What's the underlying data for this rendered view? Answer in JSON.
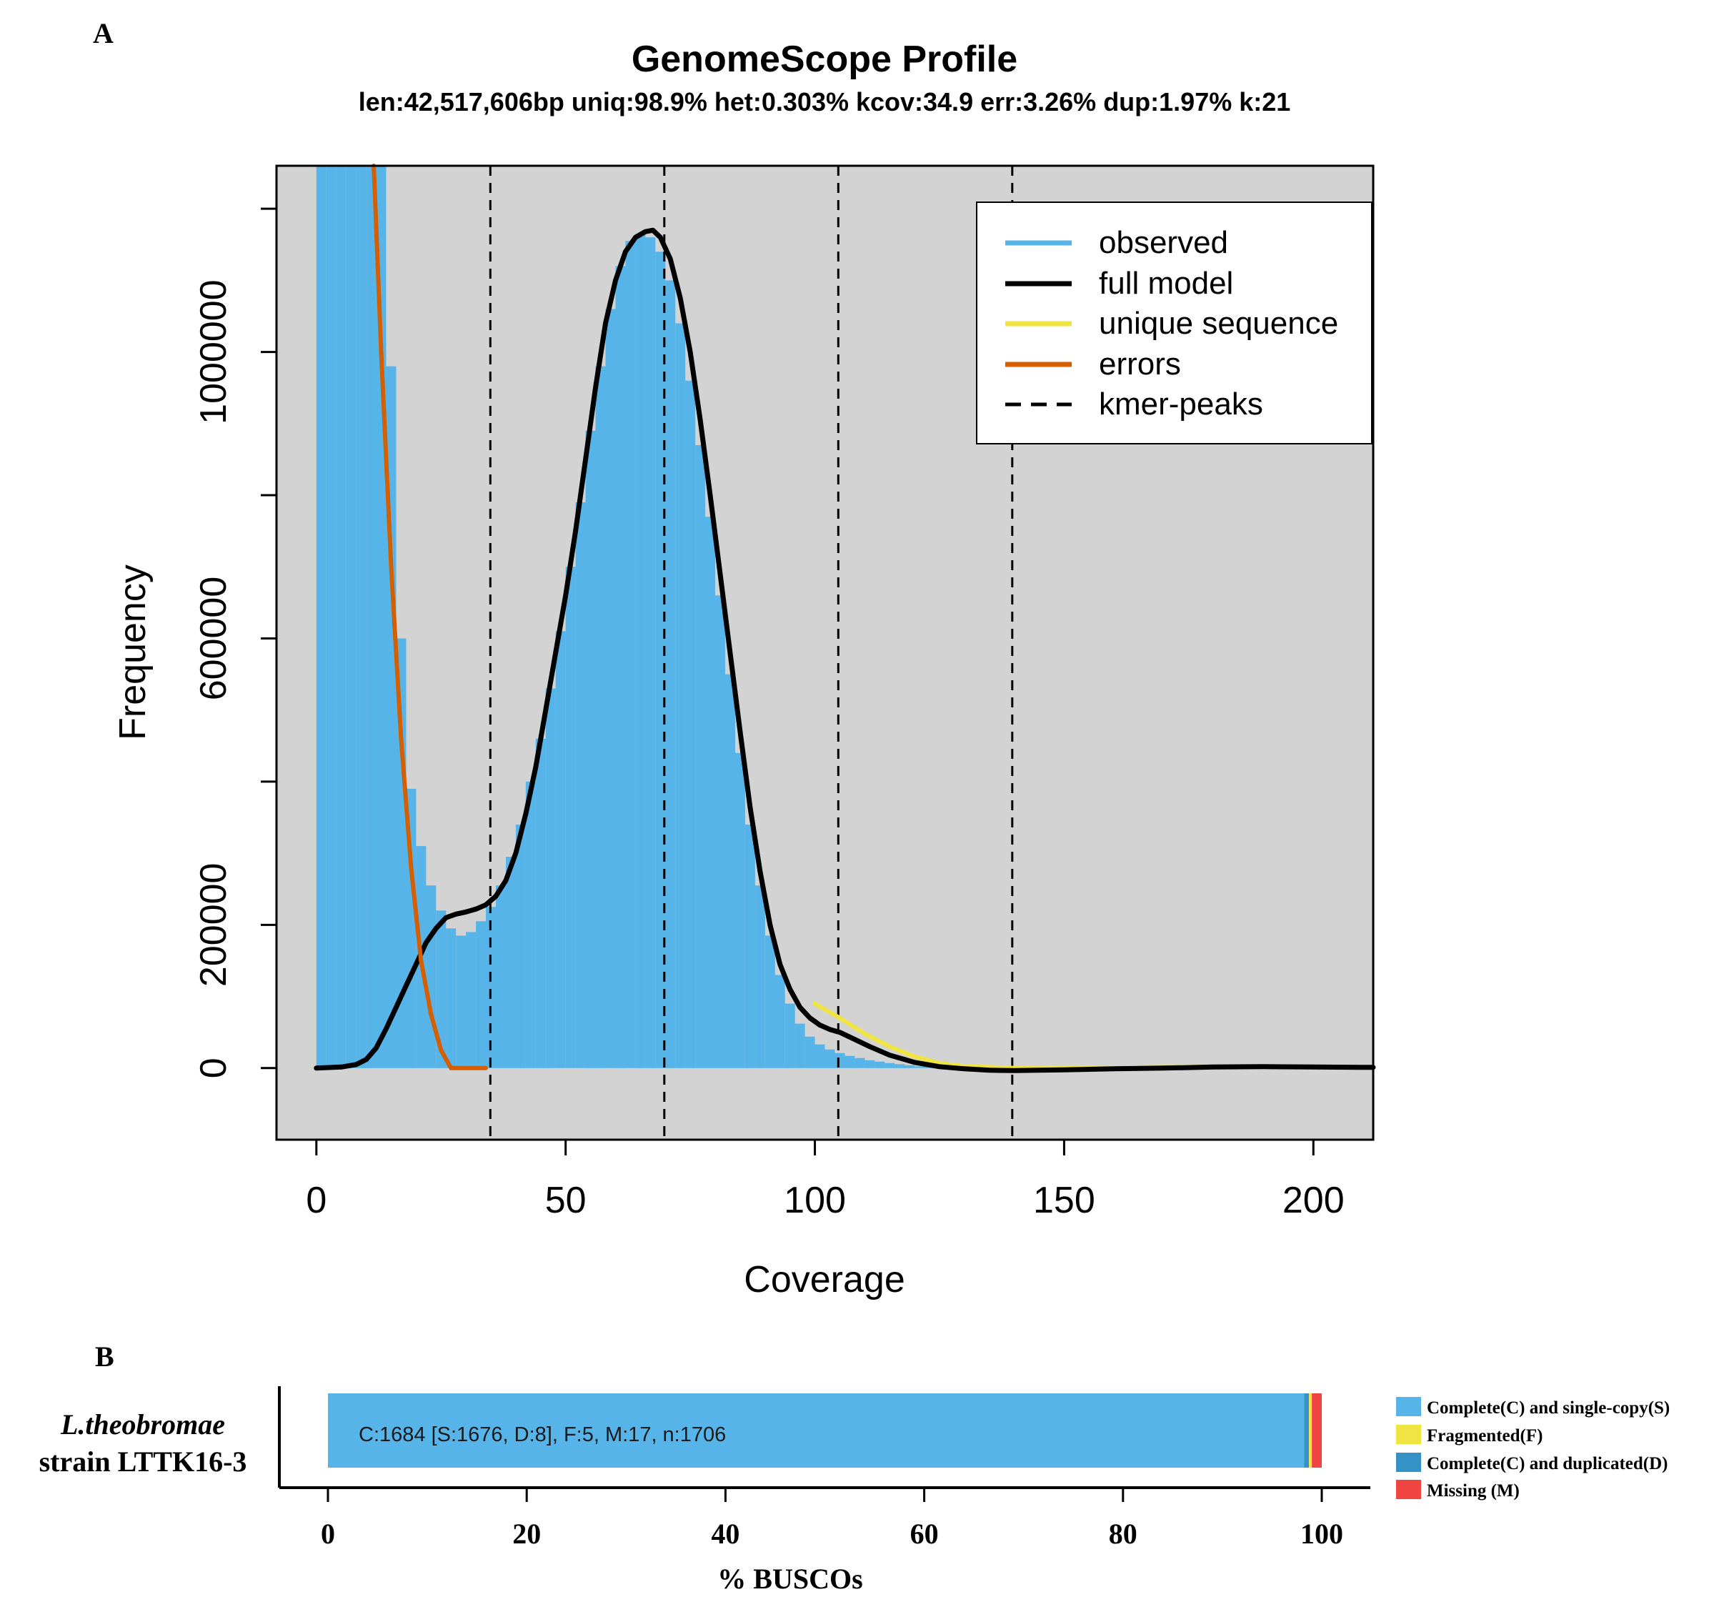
{
  "panel_a": {
    "letter": "A"
  },
  "panel_b": {
    "letter": "B"
  },
  "chart_data": [
    {
      "type": "bar",
      "title": "GenomeScope Profile",
      "subtitle": "len:42,517,606bp uniq:98.9%  het:0.303% kcov:34.9 err:3.26%  dup:1.97%  k:21",
      "xlabel": "Coverage",
      "ylabel": "Frequency",
      "xlim": [
        -8,
        212
      ],
      "ylim": [
        -100000,
        1260000
      ],
      "x_ticks": [
        0,
        50,
        100,
        150,
        200
      ],
      "x_tick_labels": [
        "0",
        "50",
        "100",
        "150",
        "200"
      ],
      "y_ticks": [
        0,
        200000,
        400000,
        600000,
        800000,
        1000000,
        1200000
      ],
      "y_tick_labels": [
        "0",
        "200000",
        "",
        "600000",
        "",
        "1000000",
        ""
      ],
      "grid": false,
      "background": "#d3d3d3",
      "legend_position": "top-right",
      "legend": [
        {
          "label": "observed",
          "color": "#56b4e9",
          "style": "solid"
        },
        {
          "label": "full model",
          "color": "#000000",
          "style": "solid"
        },
        {
          "label": "unique sequence",
          "color": "#f0e442",
          "style": "solid"
        },
        {
          "label": "errors",
          "color": "#d55e00",
          "style": "solid"
        },
        {
          "label": "kmer-peaks",
          "color": "#000000",
          "style": "dashed"
        }
      ],
      "kmer_peaks": [
        34.9,
        69.8,
        104.7,
        139.6
      ],
      "series": [
        {
          "name": "observed",
          "kind": "bar",
          "color": "#56b4e9",
          "x": [
            2,
            4,
            6,
            8,
            10,
            12,
            14,
            16,
            18,
            20,
            22,
            24,
            26,
            28,
            30,
            32,
            34,
            36,
            38,
            40,
            42,
            44,
            46,
            48,
            50,
            52,
            54,
            56,
            58,
            60,
            62,
            64,
            66,
            68,
            70,
            72,
            74,
            76,
            78,
            80,
            82,
            84,
            86,
            88,
            90,
            92,
            94,
            96,
            98,
            100,
            102,
            104,
            106,
            108,
            110,
            112,
            114,
            116,
            118,
            120,
            125,
            130,
            140,
            150,
            160,
            170,
            180,
            190,
            200,
            212
          ],
          "y": [
            1300000,
            1300000,
            1300000,
            1300000,
            1300000,
            1300000,
            1300000,
            980000,
            600000,
            390000,
            310000,
            255000,
            220000,
            195000,
            185000,
            190000,
            205000,
            225000,
            255000,
            295000,
            340000,
            400000,
            460000,
            530000,
            610000,
            700000,
            790000,
            890000,
            980000,
            1060000,
            1120000,
            1155000,
            1165000,
            1160000,
            1140000,
            1100000,
            1040000,
            960000,
            870000,
            770000,
            660000,
            550000,
            440000,
            340000,
            255000,
            185000,
            130000,
            90000,
            62000,
            44000,
            33000,
            26000,
            21000,
            17000,
            14000,
            11000,
            9000,
            7000,
            5500,
            4000,
            2500,
            1500,
            1000,
            800,
            700,
            1000,
            3000,
            3500,
            3000,
            2500
          ]
        },
        {
          "name": "full model",
          "kind": "line",
          "color": "#000000",
          "x": [
            0,
            5,
            8,
            10,
            12,
            14,
            16,
            18,
            20,
            22,
            24,
            26,
            28,
            30,
            32,
            34,
            36,
            38,
            40,
            42,
            44,
            46,
            48,
            50,
            52,
            54,
            56,
            58,
            60,
            62,
            64,
            66,
            67.5,
            69,
            71,
            73,
            75,
            77,
            79,
            81,
            83,
            85,
            87,
            89,
            91,
            93,
            95,
            97,
            99,
            101,
            103,
            105,
            108,
            111,
            115,
            120,
            125,
            130,
            135,
            140,
            150,
            160,
            170,
            180,
            190,
            200,
            212
          ],
          "y": [
            0,
            1500,
            5000,
            12000,
            28000,
            55000,
            85000,
            115000,
            145000,
            175000,
            195000,
            210000,
            215000,
            218000,
            222000,
            228000,
            240000,
            262000,
            300000,
            355000,
            420000,
            500000,
            580000,
            660000,
            750000,
            850000,
            950000,
            1040000,
            1100000,
            1140000,
            1160000,
            1168000,
            1170000,
            1160000,
            1130000,
            1075000,
            1000000,
            905000,
            800000,
            690000,
            580000,
            470000,
            365000,
            275000,
            200000,
            145000,
            110000,
            85000,
            70000,
            60000,
            54000,
            50000,
            40000,
            30000,
            18000,
            8000,
            2000,
            -1000,
            -3000,
            -3500,
            -2500,
            -1000,
            0,
            1500,
            2000,
            1500,
            1000
          ]
        },
        {
          "name": "unique sequence",
          "kind": "line",
          "color": "#f0e442",
          "x": [
            100,
            105,
            110,
            115,
            120,
            125,
            130,
            140,
            150,
            160,
            180,
            200,
            212
          ],
          "y": [
            90000,
            70000,
            48000,
            30000,
            16000,
            7000,
            2500,
            200,
            0,
            500,
            2000,
            1500,
            1000
          ]
        },
        {
          "name": "errors",
          "kind": "line",
          "color": "#d55e00",
          "x": [
            11.5,
            13,
            15,
            17,
            19,
            21,
            23,
            25,
            27,
            30,
            34
          ],
          "y": [
            1260000,
            1000000,
            700000,
            460000,
            280000,
            150000,
            75000,
            25000,
            0,
            0,
            0
          ]
        }
      ]
    },
    {
      "type": "bar",
      "orientation": "horizontal",
      "stacked": true,
      "xlabel": "% BUSCOs",
      "xlim": [
        0,
        100
      ],
      "x_ticks": [
        0,
        20,
        40,
        60,
        80,
        100
      ],
      "x_tick_labels": [
        "0",
        "20",
        "40",
        "60",
        "80",
        "100"
      ],
      "category_label_line1": "L.theobromae",
      "category_label_line2": "strain LTTK16-3",
      "bar_label": "C:1684 [S:1676, D:8], F:5, M:17, n:1706",
      "legend_position": "right",
      "legend": [
        {
          "label": "Complete(C) and single-copy(S)",
          "color": "#56b4e9"
        },
        {
          "label": "Fragmented(F)",
          "color": "#f0e442"
        },
        {
          "label": "Complete(C) and duplicated(D)",
          "color": "#3492c7"
        },
        {
          "label": "Missing (M)",
          "color": "#f04442"
        }
      ],
      "segments": [
        {
          "name": "Complete(C) and single-copy(S)",
          "count": 1676,
          "percent": 98.24,
          "color": "#56b4e9"
        },
        {
          "name": "Complete(C) and duplicated(D)",
          "count": 8,
          "percent": 0.47,
          "color": "#3492c7"
        },
        {
          "name": "Fragmented(F)",
          "count": 5,
          "percent": 0.29,
          "color": "#f0e442"
        },
        {
          "name": "Missing (M)",
          "count": 17,
          "percent": 1.0,
          "color": "#f04442"
        }
      ]
    }
  ]
}
